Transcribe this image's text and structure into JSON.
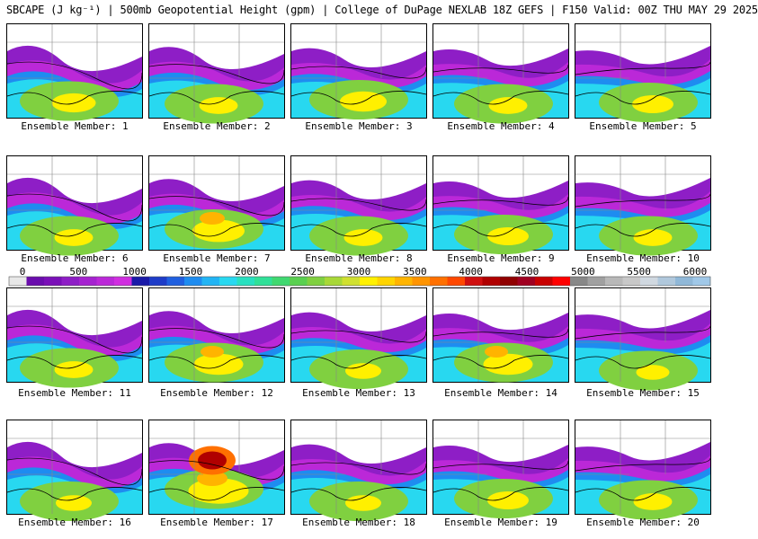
{
  "header": {
    "title": "SBCAPE (J kg⁻¹) | 500mb Geopotential Height (gpm) | College of DuPage NEXLAB 18Z GEFS | F150 Valid: 00Z THU MAY 29 2025"
  },
  "panels": [
    {
      "label": "Ensemble Member: 1",
      "intensity": 0.55
    },
    {
      "label": "Ensemble Member: 2",
      "intensity": 0.45
    },
    {
      "label": "Ensemble Member: 3",
      "intensity": 0.6
    },
    {
      "label": "Ensemble Member: 4",
      "intensity": 0.45
    },
    {
      "label": "Ensemble Member: 5",
      "intensity": 0.5
    },
    {
      "label": "Ensemble Member: 6",
      "intensity": 0.45
    },
    {
      "label": "Ensemble Member: 7",
      "intensity": 0.7
    },
    {
      "label": "Ensemble Member: 8",
      "intensity": 0.45
    },
    {
      "label": "Ensemble Member: 9",
      "intensity": 0.5
    },
    {
      "label": "Ensemble Member: 10",
      "intensity": 0.45
    },
    {
      "label": "Ensemble Member: 11",
      "intensity": 0.45
    },
    {
      "label": "Ensemble Member: 12",
      "intensity": 0.65
    },
    {
      "label": "Ensemble Member: 13",
      "intensity": 0.4
    },
    {
      "label": "Ensemble Member: 14",
      "intensity": 0.65
    },
    {
      "label": "Ensemble Member: 15",
      "intensity": 0.35
    },
    {
      "label": "Ensemble Member: 16",
      "intensity": 0.4
    },
    {
      "label": "Ensemble Member: 17",
      "intensity": 0.85
    },
    {
      "label": "Ensemble Member: 18",
      "intensity": 0.4
    },
    {
      "label": "Ensemble Member: 19",
      "intensity": 0.5
    },
    {
      "label": "Ensemble Member: 20",
      "intensity": 0.45
    }
  ],
  "colorbar": {
    "ticks": [
      "0",
      "500",
      "1000",
      "1500",
      "2000",
      "2500",
      "3000",
      "3500",
      "4000",
      "4500",
      "5000",
      "5500",
      "6000"
    ],
    "colors": [
      "#e8e8e8",
      "#6a0dad",
      "#7a10b8",
      "#8e1ec6",
      "#a522d0",
      "#bb28d8",
      "#d02ee0",
      "#1a1aa8",
      "#1e3cc8",
      "#2060e0",
      "#1e8cf0",
      "#22b4f4",
      "#28d8f0",
      "#28e0c0",
      "#30e098",
      "#40d870",
      "#5ad050",
      "#80d040",
      "#a8d838",
      "#d0e030",
      "#fff000",
      "#ffd400",
      "#ffb400",
      "#ff9400",
      "#ff7000",
      "#ff4800",
      "#d01010",
      "#b00000",
      "#900000",
      "#a00020",
      "#c80000",
      "#ff0000",
      "#888888",
      "#a0a0a0",
      "#b8b8b8",
      "#c8c8c8",
      "#d0d8e0",
      "#b0c8dc",
      "#90b8d8",
      "#a0c8e8"
    ]
  }
}
